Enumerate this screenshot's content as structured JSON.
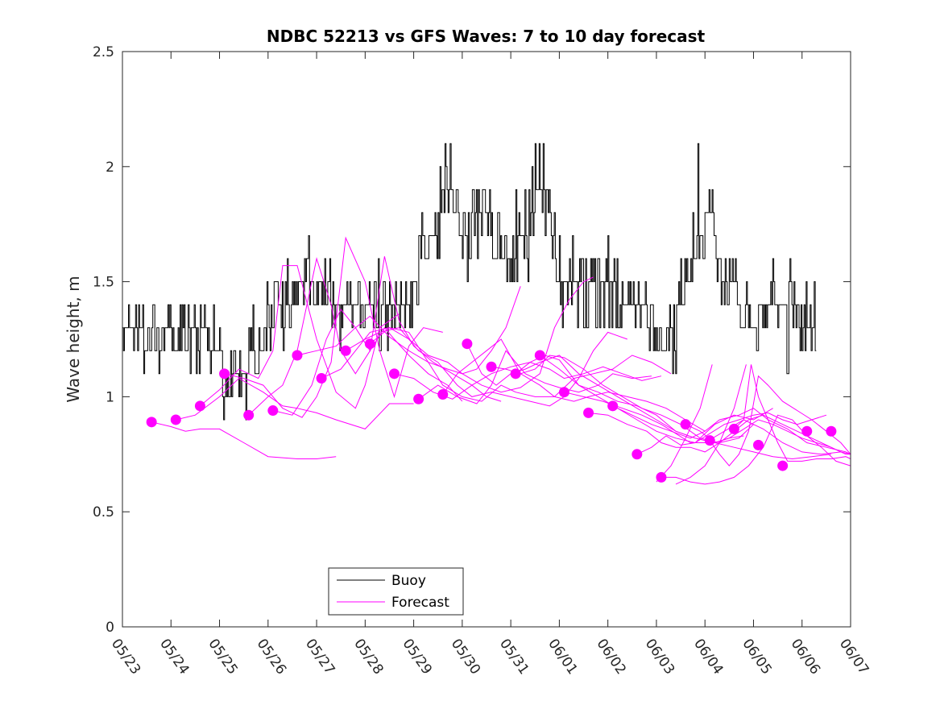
{
  "chart_data": {
    "type": "line",
    "title": "NDBC 52213 vs GFS Waves: 7 to 10 day forecast",
    "xlabel": "",
    "ylabel": "Wave height, m",
    "xlim": [
      "05/23",
      "06/07"
    ],
    "ylim": [
      0,
      2.5
    ],
    "x_ticks": [
      "05/23",
      "05/24",
      "05/25",
      "05/26",
      "05/27",
      "05/28",
      "05/29",
      "05/30",
      "05/31",
      "06/01",
      "06/02",
      "06/03",
      "06/04",
      "06/05",
      "06/06",
      "06/07"
    ],
    "y_ticks": [
      "0",
      "0.5",
      "1",
      "1.5",
      "2",
      "2.5"
    ],
    "grid": false,
    "legend": {
      "placement": "bottom-center",
      "entries": [
        {
          "label": "Buoy",
          "color": "#000000"
        },
        {
          "label": "Forecast",
          "color": "#ff00ff"
        }
      ]
    },
    "colors": {
      "buoy": "#000000",
      "forecast": "#ff00ff"
    },
    "x_unit_note": "days since 05/23",
    "buoy": {
      "name": "Buoy",
      "anchors": [
        [
          0.0,
          1.25
        ],
        [
          0.5,
          1.28
        ],
        [
          0.9,
          1.25
        ],
        [
          1.3,
          1.3
        ],
        [
          1.5,
          1.35
        ],
        [
          1.7,
          1.28
        ],
        [
          1.9,
          1.2
        ],
        [
          2.1,
          1.12
        ],
        [
          2.4,
          1.12
        ],
        [
          2.6,
          1.15
        ],
        [
          2.9,
          1.25
        ],
        [
          3.2,
          1.4
        ],
        [
          3.5,
          1.45
        ],
        [
          3.8,
          1.48
        ],
        [
          4.1,
          1.5
        ],
        [
          4.3,
          1.45
        ],
        [
          4.6,
          1.35
        ],
        [
          4.9,
          1.35
        ],
        [
          5.2,
          1.4
        ],
        [
          5.5,
          1.4
        ],
        [
          5.8,
          1.42
        ],
        [
          6.0,
          1.5
        ],
        [
          6.2,
          1.6
        ],
        [
          6.4,
          1.7
        ],
        [
          6.6,
          1.82
        ],
        [
          6.8,
          1.9
        ],
        [
          7.0,
          1.7
        ],
        [
          7.2,
          1.75
        ],
        [
          7.4,
          1.8
        ],
        [
          7.6,
          1.7
        ],
        [
          7.9,
          1.6
        ],
        [
          8.1,
          1.65
        ],
        [
          8.4,
          1.75
        ],
        [
          8.6,
          1.95
        ],
        [
          8.8,
          1.75
        ],
        [
          9.0,
          1.55
        ],
        [
          9.3,
          1.45
        ],
        [
          9.6,
          1.45
        ],
        [
          9.9,
          1.45
        ],
        [
          10.2,
          1.45
        ],
        [
          10.5,
          1.4
        ],
        [
          10.8,
          1.35
        ],
        [
          11.0,
          1.3
        ],
        [
          11.3,
          1.3
        ],
        [
          11.5,
          1.4
        ],
        [
          11.7,
          1.55
        ],
        [
          11.9,
          1.7
        ],
        [
          12.1,
          1.8
        ],
        [
          12.3,
          1.55
        ],
        [
          12.5,
          1.5
        ],
        [
          12.8,
          1.4
        ],
        [
          13.0,
          1.32
        ],
        [
          13.3,
          1.38
        ],
        [
          13.6,
          1.45
        ],
        [
          13.8,
          1.4
        ],
        [
          14.0,
          1.3
        ],
        [
          14.3,
          1.25
        ]
      ],
      "spikes": [
        [
          2.1,
          1.0
        ],
        [
          2.3,
          1.15
        ],
        [
          3.4,
          1.6
        ],
        [
          5.3,
          1.2
        ],
        [
          6.65,
          2.1
        ],
        [
          6.75,
          2.05
        ],
        [
          7.1,
          1.5
        ],
        [
          8.5,
          2.1
        ],
        [
          8.58,
          2.1
        ],
        [
          11.75,
          1.8
        ],
        [
          11.85,
          2.1
        ],
        [
          13.7,
          1.1
        ]
      ]
    },
    "forecast_runs": [
      {
        "x": [
          0.6,
          1.0,
          1.3,
          1.6,
          2.0,
          2.5,
          3.0,
          3.6,
          4.0,
          4.4
        ],
        "y": [
          0.89,
          0.87,
          0.85,
          0.86,
          0.86,
          0.8,
          0.74,
          0.73,
          0.73,
          0.74
        ]
      },
      {
        "x": [
          1.1,
          1.5,
          2.0,
          2.4,
          2.9,
          3.3,
          3.6,
          4.0,
          4.4,
          5.0,
          5.5,
          6.0
        ],
        "y": [
          0.9,
          0.92,
          1.0,
          1.08,
          1.02,
          0.96,
          0.95,
          0.93,
          0.9,
          0.86,
          0.97,
          0.97
        ]
      },
      {
        "x": [
          1.6,
          2.0,
          2.4,
          2.8,
          3.1,
          3.3,
          3.6,
          4.0,
          4.4,
          4.8,
          5.0,
          5.3,
          5.7
        ],
        "y": [
          0.96,
          1.03,
          1.12,
          1.08,
          1.2,
          1.57,
          1.57,
          1.25,
          1.02,
          0.95,
          1.05,
          1.3,
          1.36
        ]
      },
      {
        "x": [
          2.1,
          2.5,
          2.9,
          3.3,
          3.7,
          4.0,
          4.3,
          4.6,
          5.0,
          5.3,
          5.6,
          5.9,
          6.2,
          6.6
        ],
        "y": [
          1.1,
          1.08,
          1.05,
          0.95,
          0.91,
          1.0,
          1.15,
          1.69,
          1.5,
          1.2,
          1.0,
          1.22,
          1.3,
          1.28
        ]
      },
      {
        "x": [
          2.6,
          3.0,
          3.3,
          3.6,
          4.0,
          4.3,
          4.5,
          4.8,
          5.1,
          5.4,
          5.6,
          5.9,
          6.3,
          6.7,
          7.0
        ],
        "y": [
          0.92,
          1.0,
          1.05,
          1.2,
          1.6,
          1.4,
          1.2,
          1.1,
          1.2,
          1.3,
          1.25,
          1.18,
          1.1,
          1.05,
          0.98
        ]
      },
      {
        "x": [
          3.1,
          3.5,
          3.9,
          4.2,
          4.5,
          4.8,
          5.1,
          5.4,
          5.7,
          6.0,
          6.4,
          6.8,
          7.2,
          7.5,
          7.8
        ],
        "y": [
          0.94,
          0.92,
          1.05,
          1.25,
          1.38,
          1.3,
          1.2,
          1.61,
          1.33,
          1.22,
          1.15,
          1.1,
          1.05,
          1.0,
          0.98
        ]
      },
      {
        "x": [
          3.6,
          4.0,
          4.4,
          4.8,
          5.1,
          5.5,
          5.9,
          6.3,
          6.7,
          7.0,
          7.3,
          7.6,
          7.9,
          8.2
        ],
        "y": [
          1.18,
          1.2,
          1.22,
          1.3,
          1.35,
          1.26,
          1.2,
          1.15,
          1.12,
          1.1,
          1.12,
          1.2,
          1.3,
          1.48
        ]
      },
      {
        "x": [
          4.1,
          4.5,
          4.8,
          5.1,
          5.5,
          5.9,
          6.3,
          6.7,
          7.0,
          7.4,
          7.8,
          8.2,
          8.6,
          8.9,
          9.2,
          9.5,
          9.7
        ],
        "y": [
          1.08,
          1.12,
          1.2,
          1.28,
          1.3,
          1.25,
          1.18,
          1.15,
          1.1,
          1.05,
          1.02,
          1.04,
          1.1,
          1.3,
          1.42,
          1.5,
          1.52
        ]
      },
      {
        "x": [
          4.6,
          5.0,
          5.3,
          5.7,
          6.1,
          6.5,
          6.9,
          7.2,
          7.6,
          8.0,
          8.4,
          8.8,
          9.1,
          9.4,
          9.7,
          10.0,
          10.4
        ],
        "y": [
          1.2,
          1.25,
          1.28,
          1.3,
          1.2,
          1.15,
          1.05,
          1.0,
          1.02,
          1.0,
          0.98,
          0.96,
          1.0,
          1.08,
          1.2,
          1.28,
          1.25
        ]
      },
      {
        "x": [
          5.1,
          5.5,
          5.9,
          6.3,
          6.6,
          7.0,
          7.4,
          7.8,
          8.1,
          8.5,
          8.9,
          9.3,
          9.7,
          10.1,
          10.5,
          10.9,
          11.3
        ],
        "y": [
          1.23,
          1.3,
          1.28,
          1.15,
          1.05,
          1.0,
          0.98,
          1.05,
          1.02,
          1.0,
          1.0,
          1.08,
          1.1,
          1.12,
          1.18,
          1.15,
          1.1
        ]
      },
      {
        "x": [
          5.6,
          6.0,
          6.4,
          6.8,
          7.2,
          7.6,
          8.0,
          8.4,
          8.8,
          9.1,
          9.5,
          9.9,
          10.3,
          10.7,
          11.1
        ],
        "y": [
          1.1,
          1.08,
          1.02,
          0.99,
          1.05,
          1.1,
          1.13,
          1.15,
          1.12,
          1.08,
          1.1,
          1.13,
          1.1,
          1.07,
          1.09
        ]
      },
      {
        "x": [
          6.1,
          6.5,
          6.9,
          7.3,
          7.6,
          7.9,
          8.3,
          8.7,
          9.0,
          9.4,
          9.8,
          10.1,
          10.5,
          10.9
        ],
        "y": [
          0.99,
          1.05,
          1.0,
          0.97,
          1.05,
          1.2,
          1.1,
          1.06,
          1.04,
          1.02,
          1.05,
          1.1,
          1.08,
          1.09
        ]
      },
      {
        "x": [
          6.6,
          6.9,
          7.2,
          7.5,
          7.8,
          8.2,
          8.6,
          8.9,
          9.3,
          9.6,
          10.0,
          10.4,
          10.8,
          11.2,
          11.6,
          12.0
        ],
        "y": [
          1.01,
          1.1,
          1.15,
          1.2,
          1.25,
          1.1,
          1.05,
          1.0,
          0.98,
          1.0,
          1.02,
          1.0,
          0.98,
          0.95,
          0.9,
          0.85
        ]
      },
      {
        "x": [
          7.1,
          7.4,
          7.7,
          8.0,
          8.3,
          8.6,
          9.0,
          9.4,
          9.8,
          10.2,
          10.6,
          11.0,
          11.4,
          11.8,
          12.2,
          12.5,
          12.8
        ],
        "y": [
          1.23,
          1.1,
          1.05,
          1.1,
          1.12,
          1.15,
          1.18,
          1.1,
          1.05,
          1.0,
          0.95,
          0.9,
          0.85,
          0.82,
          0.8,
          0.82,
          0.83
        ]
      },
      {
        "x": [
          7.6,
          7.9,
          8.2,
          8.5,
          8.8,
          9.1,
          9.5,
          9.9,
          10.3,
          10.7,
          11.1,
          11.5,
          11.9,
          12.3,
          12.7,
          13.0
        ],
        "y": [
          1.13,
          1.12,
          1.1,
          1.12,
          1.18,
          1.17,
          1.12,
          1.05,
          1.0,
          0.95,
          0.92,
          0.88,
          0.82,
          0.8,
          0.82,
          0.88
        ]
      },
      {
        "x": [
          8.1,
          8.4,
          8.7,
          9.0,
          9.4,
          9.8,
          10.2,
          10.6,
          11.0,
          11.4,
          11.8,
          12.2,
          12.6,
          13.0,
          13.4
        ],
        "y": [
          1.1,
          1.15,
          1.18,
          1.16,
          1.05,
          1.0,
          0.95,
          0.9,
          0.85,
          0.82,
          0.8,
          0.88,
          0.92,
          0.9,
          0.95
        ]
      },
      {
        "x": [
          8.6,
          9.0,
          9.4,
          9.8,
          10.2,
          10.6,
          11.0,
          11.4,
          11.8,
          12.2,
          12.6,
          13.0,
          13.4,
          13.8,
          14.2,
          14.6
        ],
        "y": [
          1.18,
          1.12,
          1.05,
          1.02,
          0.98,
          0.96,
          0.92,
          0.85,
          0.82,
          0.8,
          0.78,
          0.76,
          0.74,
          0.73,
          0.74,
          0.75
        ]
      },
      {
        "x": [
          9.1,
          9.5,
          9.9,
          10.3,
          10.7,
          11.1,
          11.4,
          11.7,
          12.0,
          12.4,
          12.8,
          13.2,
          13.6,
          14.0,
          14.4,
          14.8,
          15.0
        ],
        "y": [
          1.02,
          1.0,
          0.98,
          0.95,
          0.92,
          0.88,
          0.84,
          0.8,
          0.8,
          0.85,
          0.9,
          0.86,
          0.8,
          0.76,
          0.75,
          0.76,
          0.75
        ]
      },
      {
        "x": [
          9.6,
          10.0,
          10.4,
          10.8,
          11.1,
          11.4,
          11.7,
          12.0,
          12.3,
          12.6,
          12.9,
          13.2,
          13.6,
          14.0,
          14.4,
          14.8
        ],
        "y": [
          0.93,
          0.92,
          0.88,
          0.85,
          0.8,
          0.78,
          0.78,
          0.76,
          0.8,
          0.85,
          0.9,
          0.92,
          0.88,
          0.84,
          0.8,
          0.76
        ]
      },
      {
        "x": [
          10.1,
          10.5,
          10.9,
          11.3,
          11.7,
          12.0,
          12.3,
          12.7,
          13.0,
          13.3,
          13.7,
          14.1,
          14.5,
          14.9,
          15.0
        ],
        "y": [
          0.96,
          0.92,
          0.88,
          0.85,
          0.82,
          0.85,
          0.9,
          0.92,
          0.95,
          0.9,
          0.86,
          0.8,
          0.78,
          0.76,
          0.75
        ]
      },
      {
        "x": [
          10.6,
          10.9,
          11.2,
          11.5,
          11.8,
          12.1,
          12.4,
          12.7,
          13.0,
          13.3,
          13.6,
          13.9,
          14.2,
          14.5
        ],
        "y": [
          0.75,
          0.78,
          0.83,
          0.79,
          0.8,
          0.84,
          0.88,
          0.9,
          0.92,
          0.93,
          0.9,
          0.88,
          0.9,
          0.92
        ]
      },
      {
        "x": [
          11.1,
          11.4,
          11.7,
          12.0,
          12.3,
          12.6,
          12.9,
          13.2,
          13.5,
          13.8,
          14.1,
          14.4,
          14.7,
          15.0
        ],
        "y": [
          0.65,
          0.65,
          0.63,
          0.62,
          0.63,
          0.65,
          0.7,
          0.78,
          0.92,
          0.9,
          0.83,
          0.78,
          0.72,
          0.7
        ]
      },
      {
        "x": [
          11.6,
          11.9,
          12.2,
          12.5,
          12.8,
          13.1,
          13.4,
          13.7,
          14.0,
          14.3,
          14.6,
          14.9,
          15.0
        ],
        "y": [
          0.88,
          0.85,
          0.8,
          0.82,
          0.86,
          0.9,
          0.88,
          0.85,
          0.82,
          0.8,
          0.78,
          0.75,
          0.75
        ]
      },
      {
        "x": [
          12.1,
          12.3,
          12.5,
          12.7,
          12.9,
          13.1,
          13.3,
          13.6,
          13.9,
          14.2,
          14.5,
          14.8,
          15.0
        ],
        "y": [
          0.81,
          0.75,
          0.7,
          0.75,
          0.85,
          1.09,
          1.05,
          0.98,
          0.94,
          0.9,
          0.85,
          0.8,
          0.75
        ]
      },
      {
        "x": [
          12.6,
          12.8,
          12.95,
          13.1,
          13.3,
          13.5,
          13.7,
          14.0,
          14.3,
          14.6,
          14.9,
          15.0
        ],
        "y": [
          0.86,
          0.9,
          1.14,
          1.0,
          0.9,
          0.8,
          0.72,
          0.72,
          0.73,
          0.73,
          0.74,
          0.73
        ]
      },
      {
        "x": [
          11.4,
          11.7,
          12.0,
          12.3,
          12.6,
          12.85
        ],
        "y": [
          0.62,
          0.65,
          0.7,
          0.8,
          0.95,
          1.14
        ]
      },
      {
        "x": [
          11.0,
          11.3,
          11.6,
          11.9,
          12.15
        ],
        "y": [
          0.63,
          0.7,
          0.82,
          0.95,
          1.14
        ]
      }
    ],
    "forecast_markers": {
      "x": [
        0.6,
        1.1,
        1.6,
        2.1,
        2.6,
        3.1,
        3.6,
        4.1,
        4.6,
        5.1,
        5.6,
        6.1,
        6.6,
        7.1,
        7.6,
        8.1,
        8.6,
        9.1,
        9.6,
        10.1,
        10.6,
        11.1,
        11.6,
        12.1,
        12.6,
        13.1,
        13.6,
        14.1,
        14.6
      ],
      "y": [
        0.89,
        0.9,
        0.96,
        1.1,
        0.92,
        0.94,
        1.18,
        1.08,
        1.2,
        1.23,
        1.1,
        0.99,
        1.01,
        1.23,
        1.13,
        1.1,
        1.18,
        1.02,
        0.93,
        0.96,
        0.75,
        0.65,
        0.88,
        0.81,
        0.86,
        0.79,
        0.7,
        0.85,
        0.85
      ]
    }
  }
}
